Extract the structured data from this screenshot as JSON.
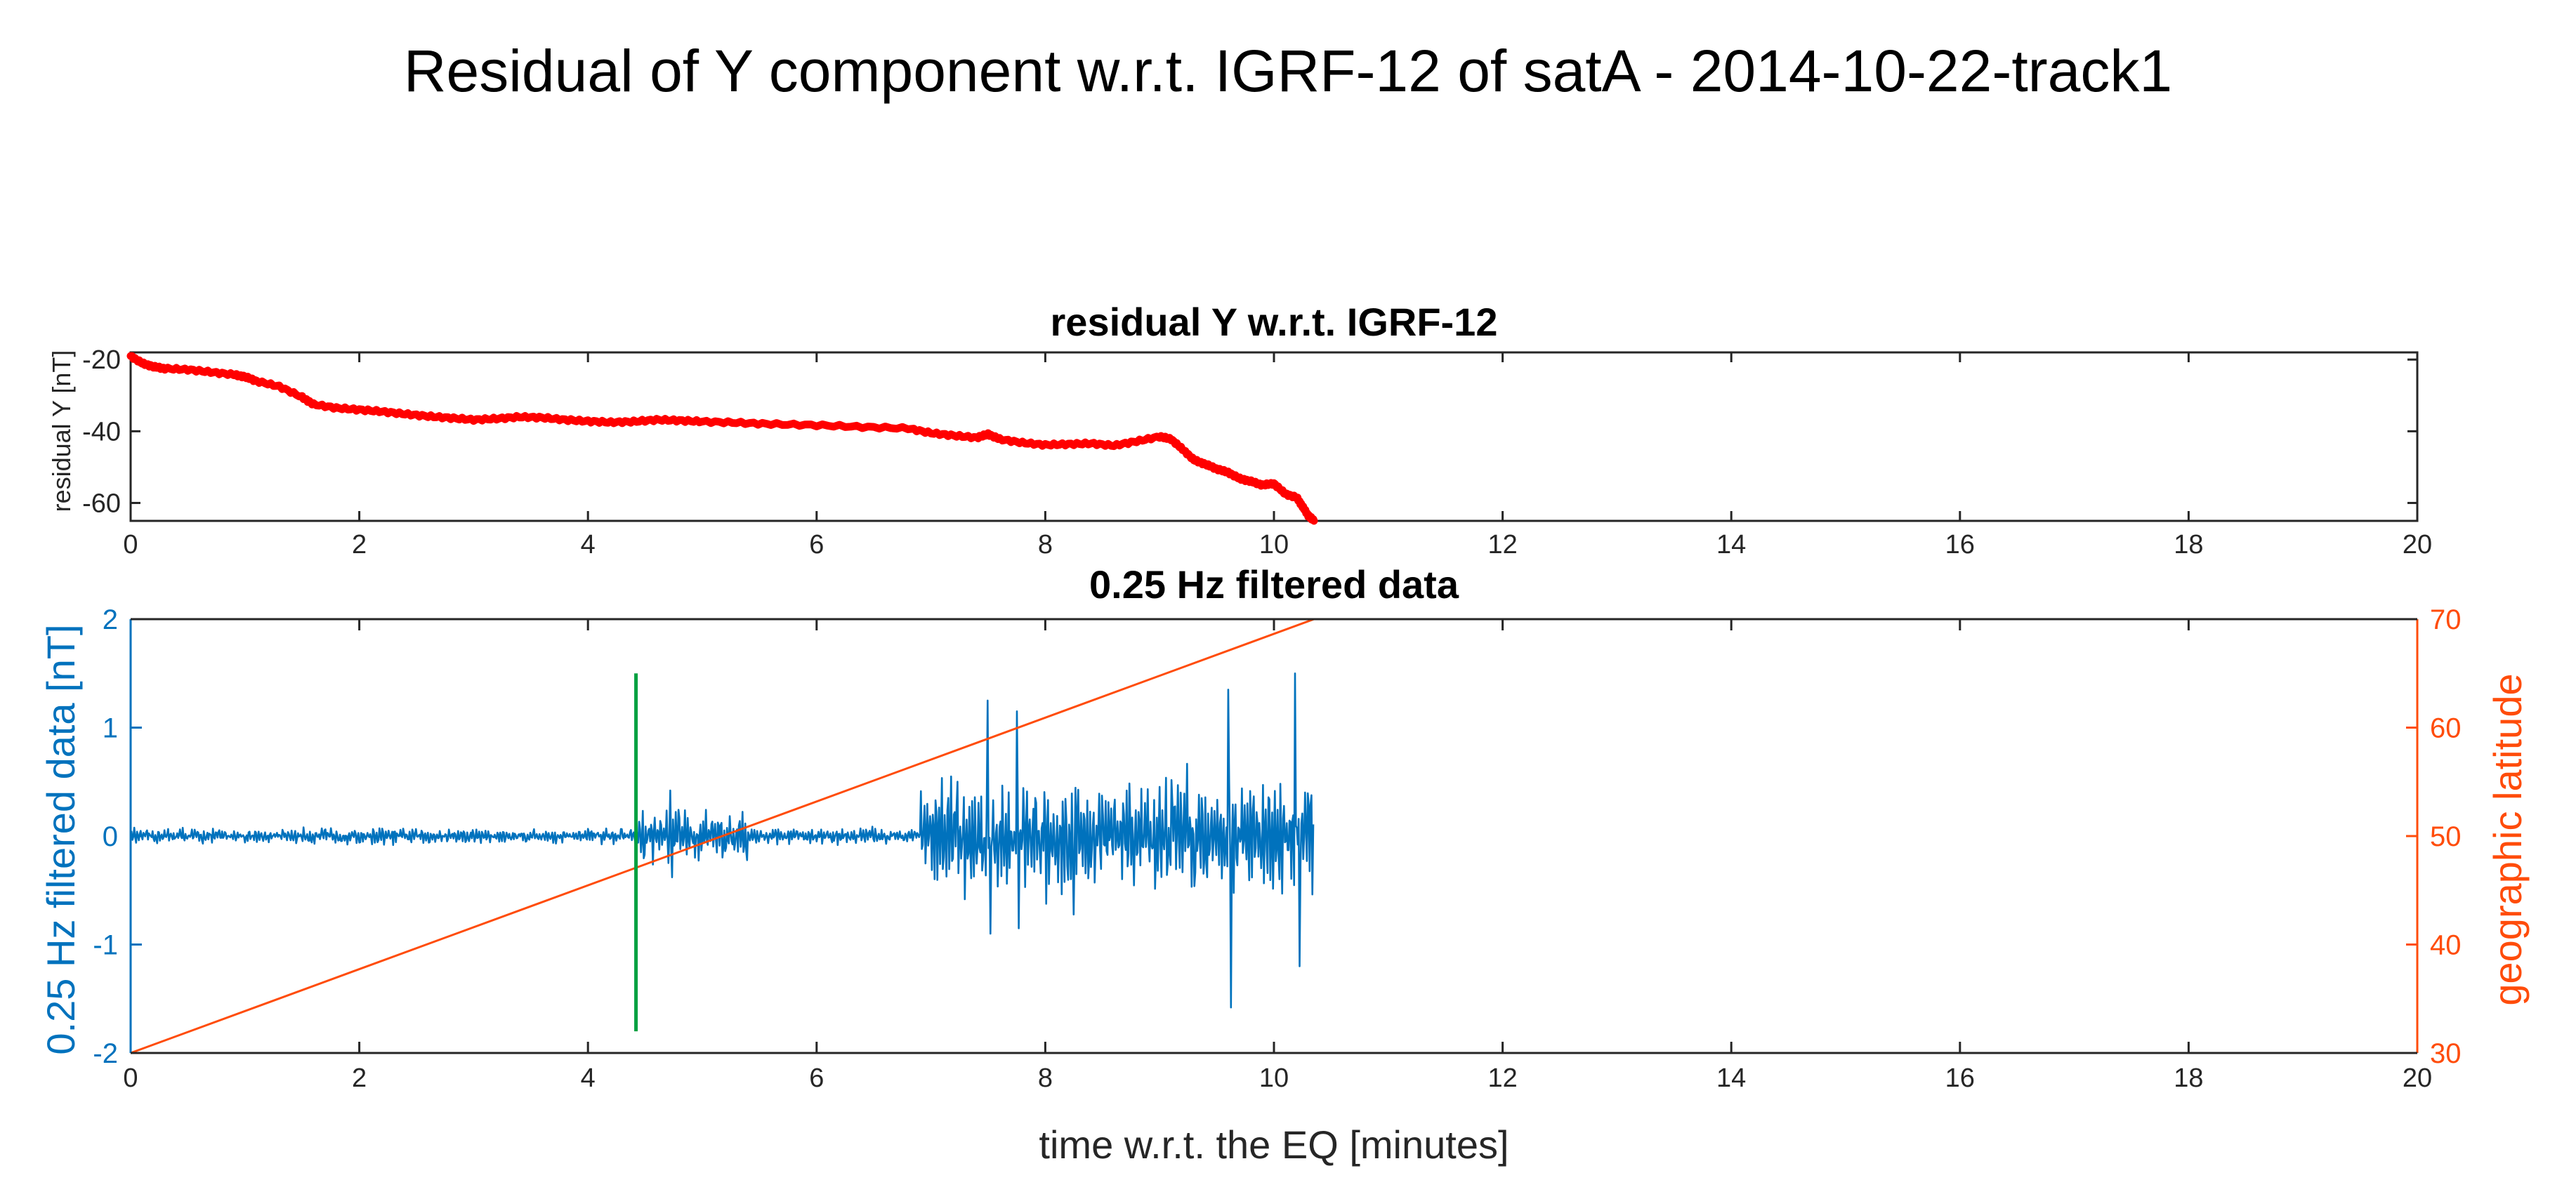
{
  "figure_title": "Residual of Y component w.r.t. IGRF-12 of satA - 2014-10-22-track1",
  "colors": {
    "residual": "#ff0000",
    "filtered": "#0072bd",
    "latitude": "#ff4c0a",
    "marker": "#00a040",
    "axis": "#262626"
  },
  "chart_data": [
    {
      "type": "line",
      "title": "residual Y w.r.t. IGRF-12",
      "xlabel": "",
      "ylabel": "residual Y [nT]",
      "xlim": [
        0,
        20
      ],
      "ylim": [
        -65,
        -18
      ],
      "xticks": [
        0,
        2,
        4,
        6,
        8,
        10,
        12,
        14,
        16,
        18,
        20
      ],
      "xtick_labels": [
        "0",
        "2",
        "4",
        "6",
        "8",
        "10",
        "12",
        "14",
        "16",
        "18",
        "20"
      ],
      "yticks": [
        -20,
        -40,
        -60
      ],
      "ytick_labels": [
        "-20",
        "-40",
        "-60"
      ],
      "grid": false,
      "series": [
        {
          "name": "residual Y",
          "color": "#ff0000",
          "x": [
            0,
            0.1,
            0.2,
            0.3,
            0.5,
            0.7,
            0.9,
            1.0,
            1.1,
            1.3,
            1.5,
            1.6,
            1.8,
            2.0,
            2.2,
            2.4,
            2.6,
            2.8,
            3.0,
            3.2,
            3.4,
            3.6,
            3.8,
            4.0,
            4.2,
            4.4,
            4.6,
            4.8,
            5.0,
            5.3,
            5.6,
            6.0,
            6.4,
            6.8,
            7.0,
            7.2,
            7.4,
            7.5,
            7.6,
            7.8,
            8.0,
            8.2,
            8.4,
            8.6,
            8.8,
            9.0,
            9.1,
            9.2,
            9.3,
            9.4,
            9.5,
            9.6,
            9.7,
            9.8,
            9.9,
            10.0,
            10.1,
            10.2,
            10.25,
            10.3,
            10.35
          ],
          "y": [
            -19,
            -21,
            -22,
            -22.5,
            -22.8,
            -23.5,
            -24.2,
            -24.8,
            -26,
            -27.5,
            -30.5,
            -32.5,
            -33.5,
            -34,
            -34.5,
            -35.2,
            -35.8,
            -36.3,
            -36.8,
            -36.5,
            -36,
            -36.2,
            -36.8,
            -37.2,
            -37.5,
            -37.3,
            -36.8,
            -37,
            -37.3,
            -37.6,
            -38,
            -38.3,
            -38.8,
            -39.2,
            -40.5,
            -41.2,
            -41.8,
            -40.8,
            -42.2,
            -43.2,
            -43.8,
            -43.6,
            -43.4,
            -44,
            -42.8,
            -41.5,
            -42.2,
            -45,
            -48,
            -49.2,
            -50.5,
            -51.5,
            -53.2,
            -54,
            -55,
            -54.6,
            -57.5,
            -58.5,
            -61,
            -63.5,
            -65
          ]
        }
      ]
    },
    {
      "type": "line",
      "title": "0.25 Hz filtered data",
      "xlabel": "time w.r.t. the EQ [minutes]",
      "ylabel": "0.25 Hz filtered data [nT]",
      "y2label": "geographic latitude",
      "xlim": [
        0,
        20
      ],
      "ylim": [
        -2,
        2
      ],
      "y2lim": [
        30,
        70
      ],
      "xticks": [
        0,
        2,
        4,
        6,
        8,
        10,
        12,
        14,
        16,
        18,
        20
      ],
      "xtick_labels": [
        "0",
        "2",
        "4",
        "6",
        "8",
        "10",
        "12",
        "14",
        "16",
        "18",
        "20"
      ],
      "yticks": [
        2,
        1,
        0,
        -1,
        -2
      ],
      "ytick_labels": [
        "2",
        "1",
        "0",
        "-1",
        "-2"
      ],
      "y2ticks": [
        70,
        60,
        50,
        40,
        30
      ],
      "y2tick_labels": [
        "70",
        "60",
        "50",
        "40",
        "30"
      ],
      "grid": false,
      "series": [
        {
          "name": "0.25 Hz filtered data",
          "axis": "left",
          "color": "#0072bd",
          "segments": [
            {
              "x_start": 0.0,
              "x_end": 4.4,
              "amplitude": 0.07
            },
            {
              "x_start": 4.4,
              "x_end": 5.4,
              "amplitude": 0.22
            },
            {
              "x_start": 5.4,
              "x_end": 6.9,
              "amplitude": 0.07
            },
            {
              "x_start": 6.9,
              "x_end": 10.35,
              "amplitude": 0.55
            }
          ],
          "peaks": [
            {
              "x": 4.72,
              "y": 0.42
            },
            {
              "x": 4.74,
              "y": -0.38
            },
            {
              "x": 7.5,
              "y": 1.25
            },
            {
              "x": 7.52,
              "y": -0.9
            },
            {
              "x": 7.75,
              "y": 1.15
            },
            {
              "x": 7.77,
              "y": -0.85
            },
            {
              "x": 9.6,
              "y": 1.35
            },
            {
              "x": 9.62,
              "y": -1.58
            },
            {
              "x": 10.18,
              "y": 1.5
            },
            {
              "x": 10.22,
              "y": -1.2
            }
          ]
        },
        {
          "name": "geographic latitude",
          "axis": "right",
          "color": "#ff4c0a",
          "x": [
            0,
            10.35
          ],
          "y": [
            30,
            70
          ]
        },
        {
          "name": "event marker",
          "axis": "left",
          "color": "#00a040",
          "x": [
            4.42,
            4.42
          ],
          "y": [
            -1.8,
            1.5
          ]
        }
      ]
    }
  ]
}
